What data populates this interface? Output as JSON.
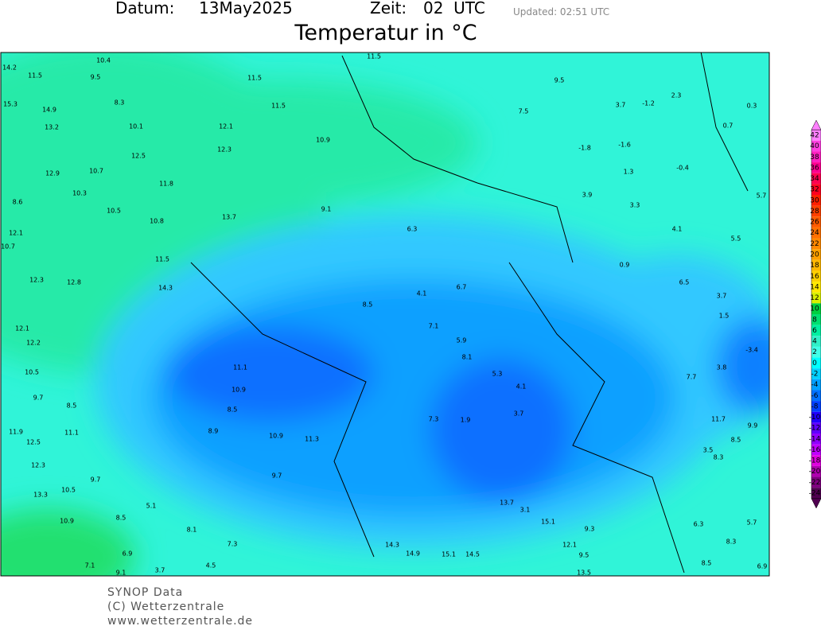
{
  "header": {
    "date_label": "Datum:",
    "date": "13May2025",
    "time_label": "Zeit:",
    "time": "02  UTC",
    "updated": "Updated: 02:51 UTC",
    "title": "Temperatur in °C"
  },
  "legend": {
    "ticks": [
      42,
      40,
      38,
      36,
      34,
      32,
      30,
      28,
      26,
      24,
      22,
      20,
      18,
      16,
      14,
      12,
      10,
      8,
      6,
      4,
      2,
      0,
      -2,
      -4,
      -6,
      -8,
      -10,
      -12,
      -14,
      -16,
      -18,
      -20,
      -22,
      -24
    ],
    "colors": [
      "#ff80ff",
      "#ff40e0",
      "#ff20c0",
      "#ff0090",
      "#ff0050",
      "#ff0020",
      "#ff2000",
      "#ff4000",
      "#ff5a00",
      "#ff7000",
      "#ff8800",
      "#ffa000",
      "#ffb800",
      "#ffd000",
      "#ffe800",
      "#d8f000",
      "#00d040",
      "#00e070",
      "#00f0a0",
      "#30f0c8",
      "#40ffe8",
      "#00ffff",
      "#00d0ff",
      "#00a0ff",
      "#0070ff",
      "#0040ff",
      "#2000ff",
      "#6000ff",
      "#9000ff",
      "#c000ff",
      "#e000e0",
      "#b000b0",
      "#800080",
      "#500050"
    ]
  },
  "stations": [
    10.4,
    9.5,
    11.5,
    14.2,
    15.3,
    14.9,
    8.3,
    13.2,
    10.1,
    12.5,
    12.9,
    10.7,
    11.8,
    8.6,
    10.3,
    10.5,
    12.1,
    10.8,
    10.7,
    12.3,
    12.8,
    11.5,
    14.3,
    12.1,
    12.3,
    11.5,
    11.5,
    13.7,
    10.9,
    11.5,
    7.5,
    9.5,
    3.7,
    -1.2,
    2.3,
    0.3,
    0.7,
    -1.8,
    -1.6,
    1.3,
    -0.4,
    3.9,
    3.3,
    4.1,
    5.5,
    0.9,
    6.5,
    3.7,
    1.5,
    -3.4,
    5.7,
    9.1,
    6.3,
    6.7,
    4.1,
    8.5,
    7.1,
    5.9,
    8.1,
    5.3,
    4.1,
    3.7,
    1.9,
    7.3,
    11.1,
    10.9,
    8.5,
    8.9,
    10.9,
    11.3,
    9.7,
    12.1,
    12.2,
    10.5,
    9.7,
    8.5,
    11.1,
    11.9,
    12.5,
    12.3,
    9.7,
    10.5,
    13.3,
    10.9,
    5.1,
    8.5,
    8.1,
    7.3,
    4.5,
    9.1,
    3.7,
    6.9,
    7.1,
    13.7,
    3.1,
    14.3,
    14.9,
    15.1,
    14.5,
    15.1,
    9.3,
    12.1,
    9.5,
    13.5,
    8.5,
    6.3,
    8.3,
    5.7,
    3.5,
    8.3,
    11.7,
    9.9,
    8.5,
    6.9,
    7.7,
    3.8
  ],
  "footer": [
    "SYNOP Data",
    "(C) Wetterzentrale",
    "www.wetterzentrale.de"
  ]
}
